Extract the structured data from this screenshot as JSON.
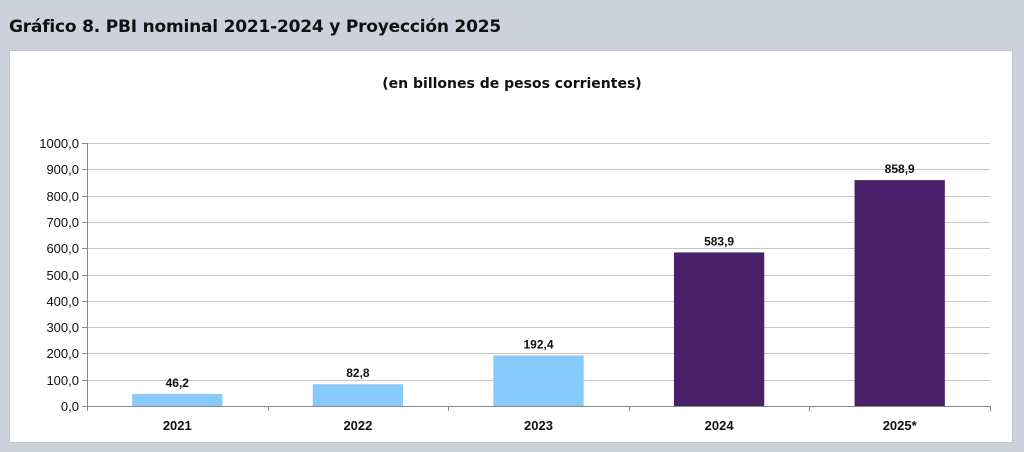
{
  "header": {
    "title": "Gráfico 8. PBI nominal 2021-2024 y Proyección 2025"
  },
  "chart_data": {
    "type": "bar",
    "title": "Gráfico 8. PBI nominal 2021-2024 y Proyección 2025",
    "subtitle": "(en billones de pesos corrientes)",
    "categories": [
      "2021",
      "2022",
      "2023",
      "2024",
      "2025*"
    ],
    "values": [
      46.2,
      82.8,
      192.4,
      583.9,
      858.9
    ],
    "data_labels": [
      "46,2",
      "82,8",
      "192,4",
      "583,9",
      "858,9"
    ],
    "bar_colors": [
      "#87cbfb",
      "#87cbfb",
      "#87cbfb",
      "#4a2168",
      "#4a2168"
    ],
    "ylim": [
      0,
      1000
    ],
    "yticks": [
      0,
      100,
      200,
      300,
      400,
      500,
      600,
      700,
      800,
      900,
      1000
    ],
    "ytick_labels": [
      "0,0",
      "100,0",
      "200,0",
      "300,0",
      "400,0",
      "500,0",
      "600,0",
      "700,0",
      "800,0",
      "900,0",
      "1000,0"
    ],
    "xlabel": "",
    "ylabel": "",
    "grid": true,
    "legend": "none"
  }
}
